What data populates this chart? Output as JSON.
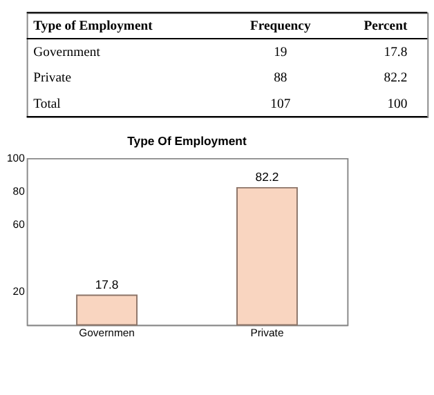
{
  "chart_data": {
    "type": "bar",
    "title": "Type Of Employment",
    "categories": [
      "Governmen",
      "Private"
    ],
    "values": [
      17.8,
      82.2
    ],
    "color": "#f9d5c0",
    "ylim": [
      0,
      100
    ],
    "yticks": [
      20,
      60,
      80,
      100
    ],
    "grid": false,
    "data_labels": true,
    "annotations": [
      "Type of Employment",
      "Frequency",
      "Percent",
      "Government",
      "19",
      "17.8",
      "Private",
      "88",
      "82.2",
      "Total",
      "107",
      "100"
    ]
  }
}
